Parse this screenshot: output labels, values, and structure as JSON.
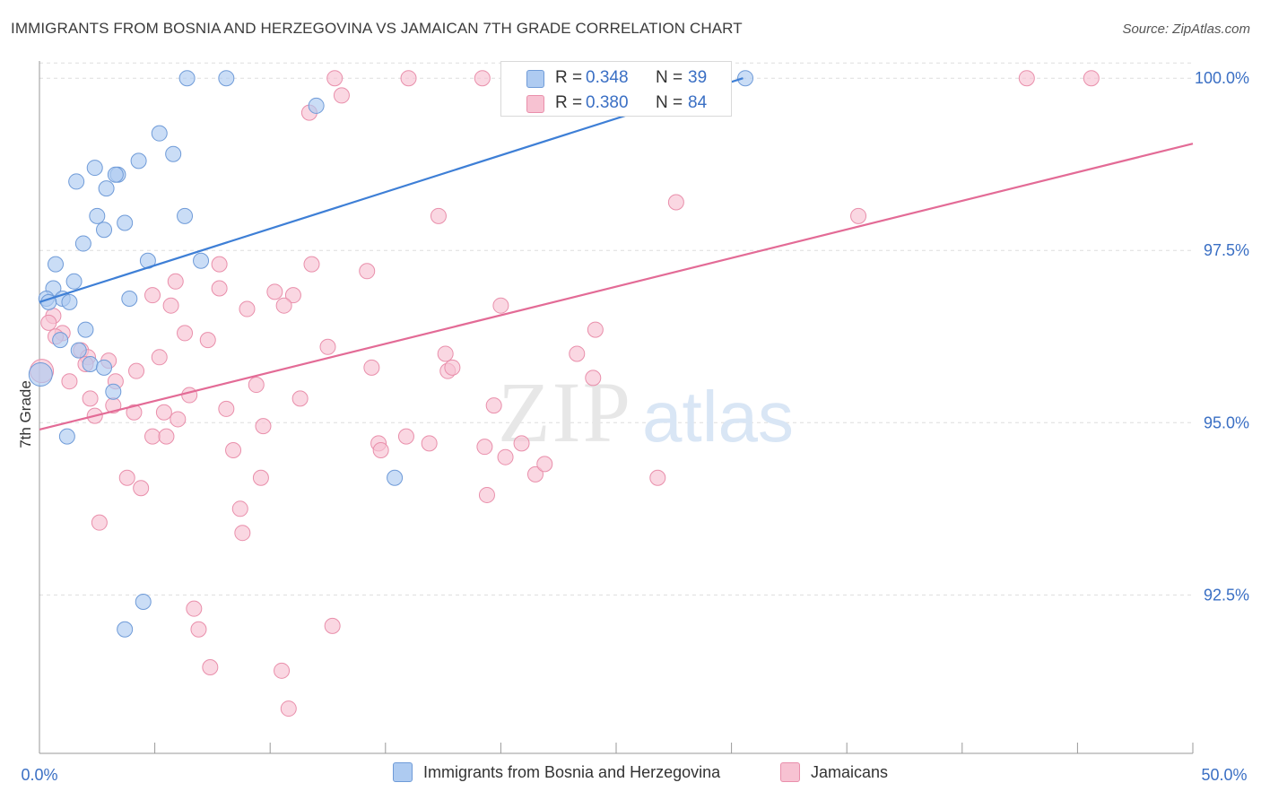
{
  "title": "IMMIGRANTS FROM BOSNIA AND HERZEGOVINA VS JAMAICAN 7TH GRADE CORRELATION CHART",
  "source": "Source: ZipAtlas.com",
  "watermark": {
    "zip": "ZIP",
    "atlas": "atlas"
  },
  "legend": {
    "series1": "Immigrants from Bosnia and Herzegovina",
    "series2": "Jamaicans"
  },
  "stats": {
    "row1": {
      "r_label": "R =",
      "r_value": "0.348",
      "n_label": "N =",
      "n_value": "39"
    },
    "row2": {
      "r_label": "R =",
      "r_value": "0.380",
      "n_label": "N =",
      "n_value": "84"
    }
  },
  "colors": {
    "blue_fill": "#aecbf1",
    "blue_stroke": "#6f9bd8",
    "blue_line": "#3e7fd6",
    "pink_fill": "#f7c2d2",
    "pink_stroke": "#e98fab",
    "pink_line": "#e36b96",
    "axis_label": "#3a6fc4",
    "grid": "#dddddd"
  },
  "chart_data": {
    "type": "scatter",
    "title": "IMMIGRANTS FROM BOSNIA AND HERZEGOVINA VS JAMAICAN 7TH GRADE CORRELATION CHART",
    "xlabel": "",
    "ylabel": "7th Grade",
    "xlim": [
      0,
      50
    ],
    "ylim": [
      90.2,
      100.25
    ],
    "x_tick_labels": [
      "0.0%",
      "50.0%"
    ],
    "y_ticks": [
      92.5,
      95.0,
      97.5,
      100.0
    ],
    "y_tick_labels": [
      "92.5%",
      "95.0%",
      "97.5%",
      "100.0%"
    ],
    "grid": true,
    "series": [
      {
        "name": "Immigrants from Bosnia and Herzegovina",
        "color": "#aecbf1",
        "trend": {
          "x": [
            0,
            30.5
          ],
          "y": [
            96.75,
            100.0
          ]
        },
        "points": [
          [
            6.4,
            100.0
          ],
          [
            8.1,
            100.0
          ],
          [
            20.6,
            100.0
          ],
          [
            30.6,
            100.0
          ],
          [
            12.0,
            99.6
          ],
          [
            5.2,
            99.2
          ],
          [
            5.8,
            98.9
          ],
          [
            4.3,
            98.8
          ],
          [
            2.4,
            98.7
          ],
          [
            3.4,
            98.6
          ],
          [
            3.3,
            98.6
          ],
          [
            1.6,
            98.5
          ],
          [
            2.9,
            98.4
          ],
          [
            2.5,
            98.0
          ],
          [
            6.3,
            98.0
          ],
          [
            3.7,
            97.9
          ],
          [
            2.8,
            97.8
          ],
          [
            1.9,
            97.6
          ],
          [
            4.7,
            97.35
          ],
          [
            7.0,
            97.35
          ],
          [
            0.7,
            97.3
          ],
          [
            1.5,
            97.05
          ],
          [
            0.6,
            96.95
          ],
          [
            0.3,
            96.8
          ],
          [
            1.0,
            96.8
          ],
          [
            3.9,
            96.8
          ],
          [
            0.4,
            96.75
          ],
          [
            1.3,
            96.75
          ],
          [
            2.0,
            96.35
          ],
          [
            0.9,
            96.2
          ],
          [
            1.7,
            96.05
          ],
          [
            2.2,
            95.85
          ],
          [
            2.8,
            95.8
          ],
          [
            3.2,
            95.45
          ],
          [
            0.05,
            95.7
          ],
          [
            1.2,
            94.8
          ],
          [
            15.4,
            94.2
          ],
          [
            4.5,
            92.4
          ],
          [
            3.7,
            92.0
          ]
        ]
      },
      {
        "name": "Jamaicans",
        "color": "#f7c2d2",
        "trend": {
          "x": [
            0,
            50
          ],
          "y": [
            94.9,
            99.05
          ]
        },
        "points": [
          [
            12.8,
            100.0
          ],
          [
            16.0,
            100.0
          ],
          [
            19.2,
            100.0
          ],
          [
            26.7,
            100.0
          ],
          [
            42.8,
            100.0
          ],
          [
            45.6,
            100.0
          ],
          [
            13.1,
            99.75
          ],
          [
            11.7,
            99.5
          ],
          [
            27.6,
            98.2
          ],
          [
            17.3,
            98.0
          ],
          [
            35.5,
            98.0
          ],
          [
            7.8,
            97.3
          ],
          [
            11.8,
            97.3
          ],
          [
            14.2,
            97.2
          ],
          [
            5.9,
            97.05
          ],
          [
            7.8,
            96.95
          ],
          [
            10.2,
            96.9
          ],
          [
            11.0,
            96.85
          ],
          [
            4.9,
            96.85
          ],
          [
            10.6,
            96.7
          ],
          [
            5.7,
            96.7
          ],
          [
            9.0,
            96.65
          ],
          [
            20.0,
            96.7
          ],
          [
            0.6,
            96.55
          ],
          [
            0.4,
            96.45
          ],
          [
            1.0,
            96.3
          ],
          [
            0.7,
            96.25
          ],
          [
            6.3,
            96.3
          ],
          [
            7.3,
            96.2
          ],
          [
            24.1,
            96.35
          ],
          [
            12.5,
            96.1
          ],
          [
            1.8,
            96.05
          ],
          [
            2.1,
            95.95
          ],
          [
            3.0,
            95.9
          ],
          [
            5.2,
            95.95
          ],
          [
            17.6,
            96.0
          ],
          [
            23.3,
            96.0
          ],
          [
            2.0,
            95.85
          ],
          [
            14.4,
            95.8
          ],
          [
            17.7,
            95.75
          ],
          [
            17.9,
            95.8
          ],
          [
            4.2,
            95.75
          ],
          [
            0.1,
            95.75
          ],
          [
            3.3,
            95.6
          ],
          [
            1.3,
            95.6
          ],
          [
            9.4,
            95.55
          ],
          [
            24.0,
            95.65
          ],
          [
            6.5,
            95.4
          ],
          [
            2.2,
            95.35
          ],
          [
            11.3,
            95.35
          ],
          [
            3.2,
            95.25
          ],
          [
            4.1,
            95.15
          ],
          [
            19.7,
            95.25
          ],
          [
            8.1,
            95.2
          ],
          [
            5.4,
            95.15
          ],
          [
            2.4,
            95.1
          ],
          [
            6.0,
            95.05
          ],
          [
            9.7,
            94.95
          ],
          [
            4.9,
            94.8
          ],
          [
            5.5,
            94.8
          ],
          [
            15.9,
            94.8
          ],
          [
            14.7,
            94.7
          ],
          [
            20.9,
            94.7
          ],
          [
            14.8,
            94.6
          ],
          [
            8.4,
            94.6
          ],
          [
            19.3,
            94.65
          ],
          [
            20.2,
            94.5
          ],
          [
            21.5,
            94.25
          ],
          [
            26.8,
            94.2
          ],
          [
            9.6,
            94.2
          ],
          [
            3.8,
            94.2
          ],
          [
            4.4,
            94.05
          ],
          [
            19.4,
            93.95
          ],
          [
            8.7,
            93.75
          ],
          [
            8.8,
            93.4
          ],
          [
            2.6,
            93.55
          ],
          [
            6.7,
            92.3
          ],
          [
            6.9,
            92.0
          ],
          [
            12.7,
            92.05
          ],
          [
            7.4,
            91.45
          ],
          [
            10.5,
            91.4
          ],
          [
            10.8,
            90.85
          ],
          [
            16.9,
            94.7
          ],
          [
            21.9,
            94.4
          ]
        ]
      }
    ]
  }
}
